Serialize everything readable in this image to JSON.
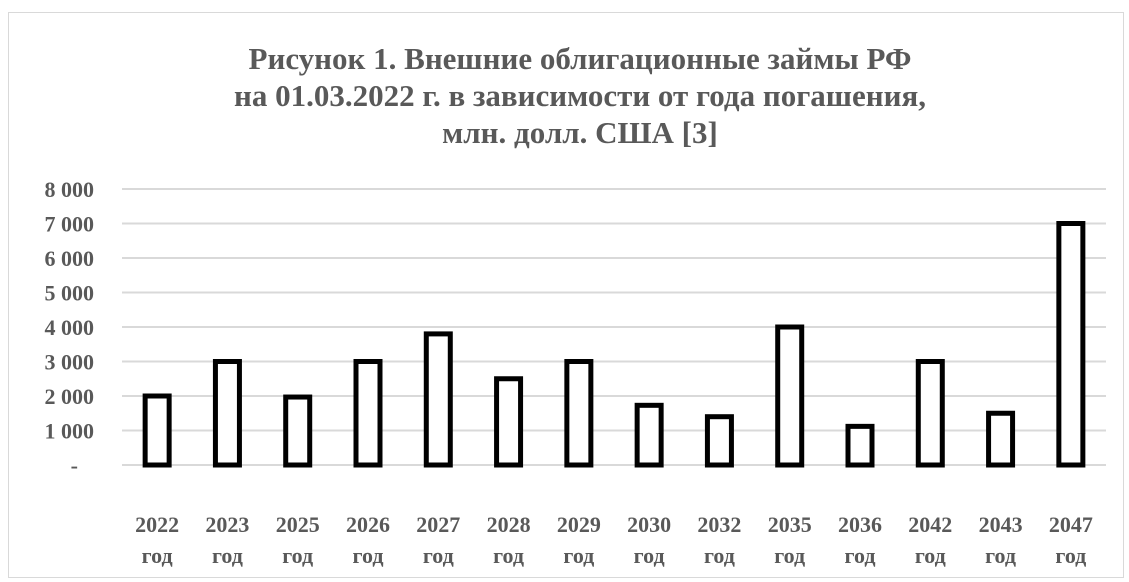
{
  "chart_data": {
    "type": "bar",
    "title_lines": [
      "Рисунок 1. Внешние облигационные займы РФ",
      "на 01.03.2022 г. в зависимости от года погашения,",
      "млн. долл. США [3]"
    ],
    "categories": [
      [
        "2022",
        "год"
      ],
      [
        "2023",
        "год"
      ],
      [
        "2025",
        "год"
      ],
      [
        "2026",
        "год"
      ],
      [
        "2027",
        "год"
      ],
      [
        "2028",
        "год"
      ],
      [
        "2029",
        "год"
      ],
      [
        "2030",
        "год"
      ],
      [
        "2032",
        "год"
      ],
      [
        "2035",
        "год"
      ],
      [
        "2036",
        "год"
      ],
      [
        "2042",
        "год"
      ],
      [
        "2043",
        "год"
      ],
      [
        "2047",
        "год"
      ]
    ],
    "values": [
      2000,
      3000,
      1970,
      3000,
      3800,
      2500,
      3000,
      1730,
      1400,
      4000,
      1120,
      3000,
      1500,
      7000
    ],
    "ylim": [
      0,
      8000
    ],
    "yticks": [
      {
        "value": 0,
        "label": "-"
      },
      {
        "value": 1000,
        "label": "1 000"
      },
      {
        "value": 2000,
        "label": "2 000"
      },
      {
        "value": 3000,
        "label": "3 000"
      },
      {
        "value": 4000,
        "label": "4 000"
      },
      {
        "value": 5000,
        "label": "5 000"
      },
      {
        "value": 6000,
        "label": "6 000"
      },
      {
        "value": 7000,
        "label": "7 000"
      },
      {
        "value": 8000,
        "label": "8 000"
      }
    ],
    "grid": true,
    "legend": "none",
    "colors": {
      "bar_fill": "#ffffff",
      "bar_stroke": "#000000",
      "grid": "#d9d9d9",
      "text": "#595959"
    }
  }
}
